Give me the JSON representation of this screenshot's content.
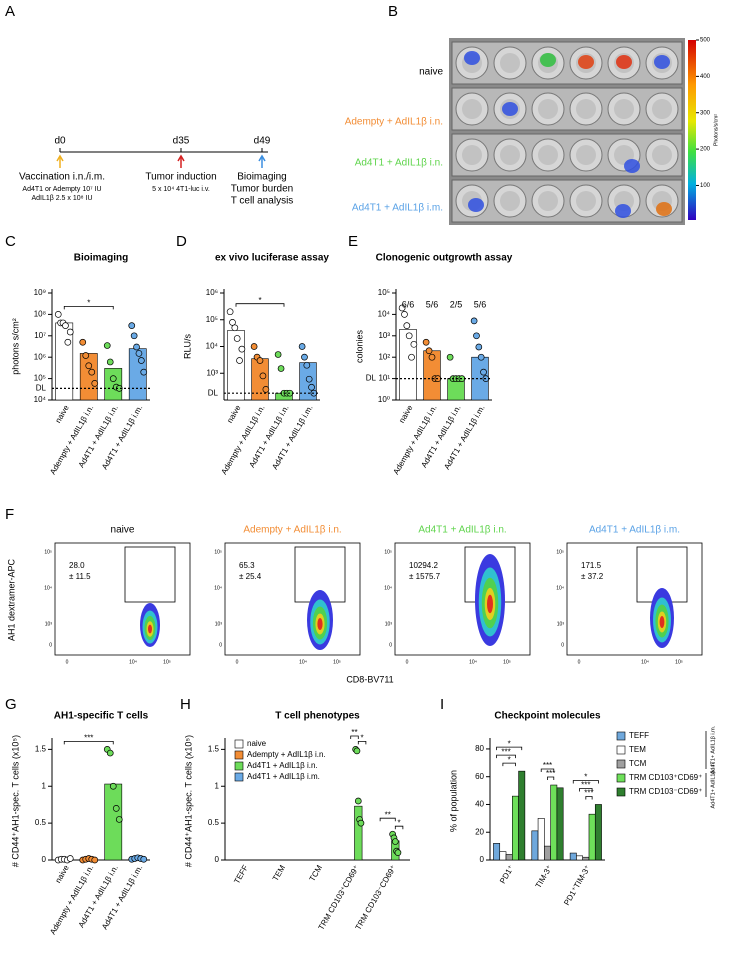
{
  "panel_labels": [
    "A",
    "B",
    "C",
    "D",
    "E",
    "F",
    "G",
    "H",
    "I"
  ],
  "timeline": {
    "points": [
      {
        "day": "d0",
        "color": "#f0b020",
        "lines": [
          "Vaccination i.n./i.m.",
          "Ad4T1 or Adempty 10⁷ IU",
          "AdIL1β 2.5 x 10⁸ IU"
        ]
      },
      {
        "day": "d35",
        "color": "#d42020",
        "lines": [
          "Tumor induction",
          "5 x 10⁴ 4T1-luc i.v."
        ]
      },
      {
        "day": "d49",
        "color": "#3a8ee0",
        "lines": [
          "Bioimaging",
          "Tumor burden",
          "T cell analysis"
        ]
      }
    ]
  },
  "imaging": {
    "groups": [
      {
        "label": "naive",
        "color": "#000000"
      },
      {
        "label": "Adempty + AdIL1β i.n.",
        "color": "#f28d35"
      },
      {
        "label": "Ad4T1 + AdIL1β i.n.",
        "color": "#5fd44c"
      },
      {
        "label": "Ad4T1 + AdIL1β i.m.",
        "color": "#5aa2e6"
      }
    ],
    "colorbar": {
      "label": "Photons/s/cm²",
      "lim": [
        5,
        500
      ],
      "ticks": [
        500,
        400,
        300,
        200,
        100
      ]
    }
  },
  "flow": {
    "x_label": "CD8-BV711",
    "y_label": "AH1 dextramer-APC",
    "yticks": [
      "10⁵",
      "10⁴",
      "10³",
      0
    ],
    "xticks": [
      0,
      "10⁴",
      "10⁵"
    ],
    "plots": [
      {
        "title": "naive",
        "color": "#000000",
        "gate": [
          "28.0",
          "± 11.5"
        ]
      },
      {
        "title": "Adempty + AdIL1β i.n.",
        "color": "#f28d35",
        "gate": [
          "65.3",
          "± 25.4"
        ]
      },
      {
        "title": "Ad4T1 + AdIL1β i.n.",
        "color": "#5fd44c",
        "gate": [
          "10294.2",
          "± 1575.7"
        ]
      },
      {
        "title": "Ad4T1 + AdIL1β i.m.",
        "color": "#5aa2e6",
        "gate": [
          "171.5",
          "± 37.2"
        ]
      }
    ]
  },
  "chart_data": [
    {
      "type": "bar",
      "title": "Bioimaging",
      "ylabel": "photons s/cm²",
      "log_scale": true,
      "categories": [
        "naive",
        "Adempty + AdIL1β i.n.",
        "Ad4T1 + AdIL1β i.n.",
        "Ad4T1 + AdIL1β i.m."
      ],
      "values": [
        40000000,
        1500000,
        300000,
        2500000
      ],
      "colors": [
        "#ffffff",
        "#f28d35",
        "#6ddc5a",
        "#6aaae6"
      ],
      "points": [
        [
          100000000,
          40000000,
          40000000,
          30000000,
          5000000,
          15000000
        ],
        [
          5000000,
          1200000,
          400000,
          200000,
          60000
        ],
        [
          3500000,
          600000,
          100000,
          40000,
          35000
        ],
        [
          30000000,
          10000000,
          3000000,
          1500000,
          700000,
          200000
        ]
      ],
      "ylim": [
        10000,
        1000000000
      ],
      "yticks": [
        {
          "value": 10000,
          "label": "10⁴"
        },
        {
          "value": 100000,
          "label": "10⁵"
        },
        {
          "value": 1000000,
          "label": "10⁶"
        },
        {
          "value": 10000000,
          "label": "10⁷"
        },
        {
          "value": 100000000,
          "label": "10⁸"
        },
        {
          "value": 1000000000,
          "label": "10⁹"
        }
      ],
      "detection_limit": {
        "value": 35000,
        "label": "DL"
      },
      "significance": [
        {
          "label": "*",
          "from": [
            0,
            0
          ],
          "to": [
            2,
            0
          ]
        }
      ]
    },
    {
      "type": "bar",
      "title": "ex vivo luciferase assay",
      "ylabel": "RLU/s",
      "log_scale": true,
      "categories": [
        "naive",
        "Adempty + AdIL1β i.n.",
        "Ad4T1 + AdIL1β i.n.",
        "Ad4T1 + AdIL1β i.m."
      ],
      "values": [
        40000,
        3500,
        180,
        2500
      ],
      "colors": [
        "#ffffff",
        "#f28d35",
        "#6ddc5a",
        "#6aaae6"
      ],
      "points": [
        [
          200000,
          80000,
          50000,
          20000,
          3000,
          8000
        ],
        [
          10000,
          4000,
          3000,
          800,
          250
        ],
        [
          5000,
          1500,
          180,
          180,
          180
        ],
        [
          10000,
          4000,
          2000,
          600,
          300,
          180
        ]
      ],
      "ylim": [
        100,
        1000000
      ],
      "yticks": [
        {
          "value": 1000,
          "label": "10³"
        },
        {
          "value": 10000,
          "label": "10⁴"
        },
        {
          "value": 100000,
          "label": "10⁵"
        },
        {
          "value": 1000000,
          "label": "10⁶"
        }
      ],
      "detection_limit": {
        "value": 180,
        "label": "DL"
      },
      "significance": [
        {
          "label": "*",
          "from": [
            0,
            0
          ],
          "to": [
            2,
            0
          ]
        }
      ]
    },
    {
      "type": "bar",
      "title": "Clonogenic outgrowth assay",
      "ylabel": "colonies",
      "log_scale": true,
      "categories": [
        "naive",
        "Adempty + AdIL1β i.n.",
        "Ad4T1 + AdIL1β i.n.",
        "Ad4T1 + AdIL1β i.m."
      ],
      "values": [
        2000,
        200,
        10,
        100
      ],
      "colors": [
        "#ffffff",
        "#f28d35",
        "#6ddc5a",
        "#6aaae6"
      ],
      "points": [
        [
          20000,
          10000,
          3000,
          1000,
          100,
          400
        ],
        [
          500,
          200,
          100,
          10,
          10
        ],
        [
          100,
          10,
          10,
          10,
          10
        ],
        [
          5000,
          1000,
          300,
          100,
          20,
          10
        ]
      ],
      "fractions": [
        "6/6",
        "5/6",
        "2/5",
        "5/6"
      ],
      "ylim": [
        1,
        100000
      ],
      "yticks": [
        {
          "value": 1,
          "label": "10⁰"
        },
        {
          "value": 10,
          "label": "10¹"
        },
        {
          "value": 100,
          "label": "10²"
        },
        {
          "value": 1000,
          "label": "10³"
        },
        {
          "value": 10000,
          "label": "10⁴"
        },
        {
          "value": 100000,
          "label": "10⁵"
        }
      ],
      "detection_limit": {
        "value": 10,
        "label": "DL"
      }
    },
    {
      "type": "bar",
      "title": "AH1-specific T cells",
      "ylabel": "# CD44⁺AH1-spec. T cells (x10⁵)",
      "log_scale": false,
      "categories": [
        "naive",
        "Adempty + AdIL1β i.n.",
        "Ad4T1 + AdIL1β i.n.",
        "Ad4T1 + AdIL1β i.m."
      ],
      "values": [
        0.01,
        0.01,
        1.03,
        0.02
      ],
      "colors": [
        "#ffffff",
        "#f28d35",
        "#6ddc5a",
        "#6aaae6"
      ],
      "points": [
        [
          0,
          0.01,
          0.01,
          0,
          0.02
        ],
        [
          0,
          0.01,
          0.02,
          0.01,
          0
        ],
        [
          1.5,
          1.45,
          1.0,
          0.7,
          0.55
        ],
        [
          0.01,
          0.02,
          0.03,
          0.02,
          0.01
        ]
      ],
      "ylim": [
        0,
        1.6
      ],
      "yticks": [
        0,
        0.5,
        1,
        1.5
      ],
      "significance": [
        {
          "label": "***",
          "from": [
            0,
            0
          ],
          "to": [
            2,
            0
          ]
        }
      ]
    },
    {
      "type": "bar",
      "title": "T cell phenotypes",
      "ylabel": "# CD44⁺AH1-spec. T cells (x10⁵)",
      "log_scale": false,
      "categories": [
        "TEFF",
        "TEM",
        "TCM",
        "TRM CD103⁺CD69⁺",
        "TRM CD103⁻CD69⁺"
      ],
      "series": [
        {
          "name": "naive",
          "color": "#ffffff",
          "values": [
            0,
            0,
            0,
            0,
            0
          ]
        },
        {
          "name": "Adempty + AdIL1β i.n.",
          "color": "#f28d35",
          "values": [
            0,
            0,
            0,
            0,
            0
          ]
        },
        {
          "name": "Ad4T1 + AdIL1β i.n.",
          "color": "#6ddc5a",
          "values": [
            0,
            0,
            0,
            0.73,
            0.26
          ],
          "points": [
            [],
            [],
            [],
            [
              1.5,
              1.48,
              0.8,
              0.55,
              0.5
            ],
            [
              0.35,
              0.3,
              0.25,
              0.12,
              0.1
            ]
          ]
        },
        {
          "name": "Ad4T1 + AdIL1β i.m.",
          "color": "#6aaae6",
          "values": [
            0,
            0,
            0,
            0,
            0
          ]
        }
      ],
      "legend_position": "upper left",
      "ylim": [
        0,
        1.6
      ],
      "yticks": [
        0,
        0.5,
        1,
        1.5
      ],
      "significance": [
        {
          "label": "**",
          "from": [
            3,
            1
          ],
          "to": [
            3,
            2
          ]
        },
        {
          "label": "*",
          "from": [
            3,
            2
          ],
          "to": [
            3,
            3
          ]
        },
        {
          "label": "**",
          "from": [
            4,
            0
          ],
          "to": [
            4,
            2
          ]
        },
        {
          "label": "*",
          "from": [
            4,
            2
          ],
          "to": [
            4,
            3
          ]
        }
      ]
    },
    {
      "type": "bar",
      "title": "Checkpoint molecules",
      "ylabel": "% of population",
      "log_scale": false,
      "categories": [
        "PD1⁺",
        "TIM-3⁺",
        "PD1⁺TIM-3⁺"
      ],
      "series": [
        {
          "name": "TEFF",
          "color": "#6fa8dc",
          "values": [
            12,
            21,
            5
          ]
        },
        {
          "name": "TEM",
          "color": "#ffffff",
          "values": [
            6,
            30,
            3
          ]
        },
        {
          "name": "TCM",
          "color": "#a0a0a0",
          "values": [
            4,
            10,
            2
          ]
        },
        {
          "name": "TRM CD103⁺CD69⁺",
          "color": "#6ee05a",
          "values": [
            46,
            54,
            33
          ]
        },
        {
          "name": "TRM CD103⁻CD69⁺",
          "color": "#2f7f2f",
          "values": [
            64,
            52,
            40
          ]
        }
      ],
      "legend_position": "right",
      "legend_groups": [
        {
          "label": "Ad4T1+ AdIL1β i.m.",
          "series": [
            0,
            1,
            2
          ]
        },
        {
          "label": "Ad4T1+ AdIL1β i.n.",
          "series": [
            3,
            4
          ]
        }
      ],
      "ylim": [
        0,
        85
      ],
      "yticks": [
        0,
        20,
        40,
        60,
        80
      ],
      "significance": [
        {
          "label": "*",
          "from": [
            0,
            0
          ],
          "to": [
            0,
            4
          ]
        },
        {
          "label": "***",
          "from": [
            0,
            0
          ],
          "to": [
            0,
            3
          ]
        },
        {
          "label": "*",
          "from": [
            0,
            1
          ],
          "to": [
            0,
            3
          ]
        },
        {
          "label": "***",
          "from": [
            1,
            1
          ],
          "to": [
            1,
            3
          ]
        },
        {
          "label": "***",
          "from": [
            1,
            2
          ],
          "to": [
            1,
            3
          ]
        },
        {
          "label": "*",
          "from": [
            2,
            0
          ],
          "to": [
            2,
            4
          ]
        },
        {
          "label": "***",
          "from": [
            2,
            1
          ],
          "to": [
            2,
            3
          ]
        },
        {
          "label": "***",
          "from": [
            2,
            2
          ],
          "to": [
            2,
            3
          ]
        }
      ]
    }
  ]
}
